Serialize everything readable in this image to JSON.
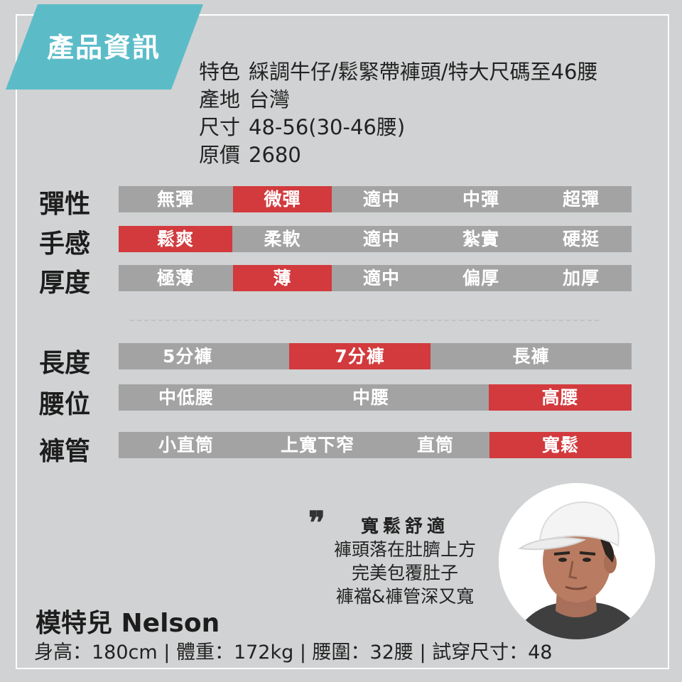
{
  "header": {
    "tag": "產品資訊"
  },
  "info": [
    {
      "label": "特色",
      "value": "綵調牛仔/鬆緊帶褲頭/特大尺碼至46腰"
    },
    {
      "label": "產地",
      "value": "台灣"
    },
    {
      "label": "尺寸",
      "value": "48-56(30-46腰)"
    },
    {
      "label": "原價",
      "value": "2680"
    }
  ],
  "ratings": [
    {
      "label": "彈性",
      "options": [
        "無彈",
        "微彈",
        "適中",
        "中彈",
        "超彈"
      ],
      "selected": "微彈"
    },
    {
      "label": "手感",
      "options": [
        "鬆爽",
        "柔軟",
        "適中",
        "紮實",
        "硬挺"
      ],
      "selected": "鬆爽"
    },
    {
      "label": "厚度",
      "options": [
        "極薄",
        "薄",
        "適中",
        "偏厚",
        "加厚"
      ],
      "selected": "薄"
    },
    {
      "label": "長度",
      "options": [
        "5分褲",
        "7分褲",
        "長褲"
      ],
      "selected": "7分褲"
    },
    {
      "label": "腰位",
      "options": [
        "中低腰",
        "中腰",
        "高腰"
      ],
      "selected": "高腰"
    },
    {
      "label": "褲管",
      "options": [
        "小直筒",
        "上寬下窄",
        "直筒",
        "寬鬆"
      ],
      "selected": "寬鬆"
    }
  ],
  "quote": {
    "mark": "❞",
    "title": "寬鬆舒適",
    "lines": [
      "褲頭落在肚臍上方",
      "完美包覆肚子",
      "褲襠&褲管深又寬"
    ]
  },
  "model": {
    "name": "模特兒 Nelson",
    "stats": "身高：180cm | 體重：172kg | 腰圍：32腰 | 試穿尺寸：48"
  },
  "colors": {
    "accent": "#d23a3d",
    "bar": "#a3a3a3",
    "tag": "#5bbcc8",
    "background": "#d1d2d3"
  }
}
